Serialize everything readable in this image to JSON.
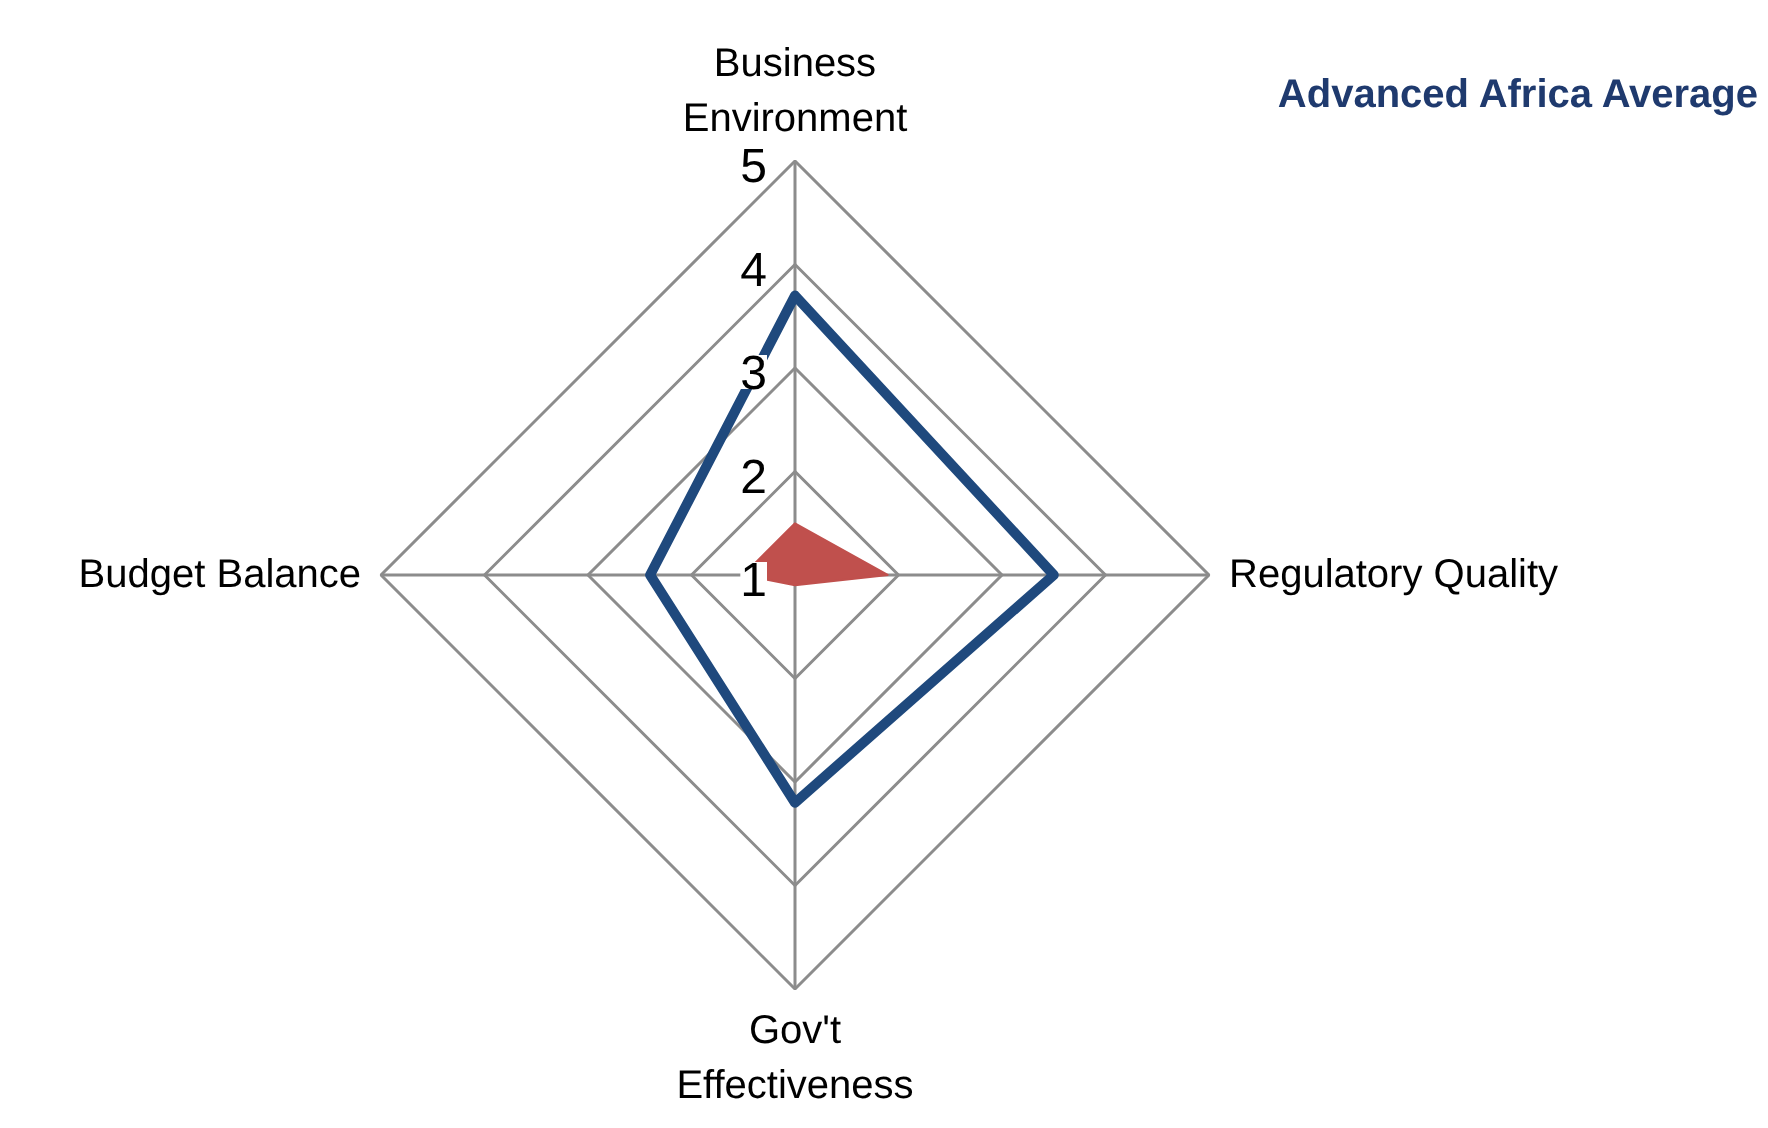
{
  "chart_data": {
    "type": "radar",
    "title": "Advanced Africa Average",
    "categories": [
      "Business\nEnvironment",
      "Regulatory Quality",
      "Gov't\nEffectiveness",
      "Budget Balance"
    ],
    "series": [
      {
        "color": "#1f497d",
        "values": [
          3.7,
          3.5,
          3.2,
          2.4
        ]
      },
      {
        "type": "area",
        "color": "#c0504d",
        "values": [
          1.5,
          1.9,
          1.1,
          1.5
        ]
      }
    ],
    "ylim": [
      1,
      5
    ],
    "yticks": [
      1,
      2,
      3,
      4,
      5
    ],
    "grid": true
  }
}
